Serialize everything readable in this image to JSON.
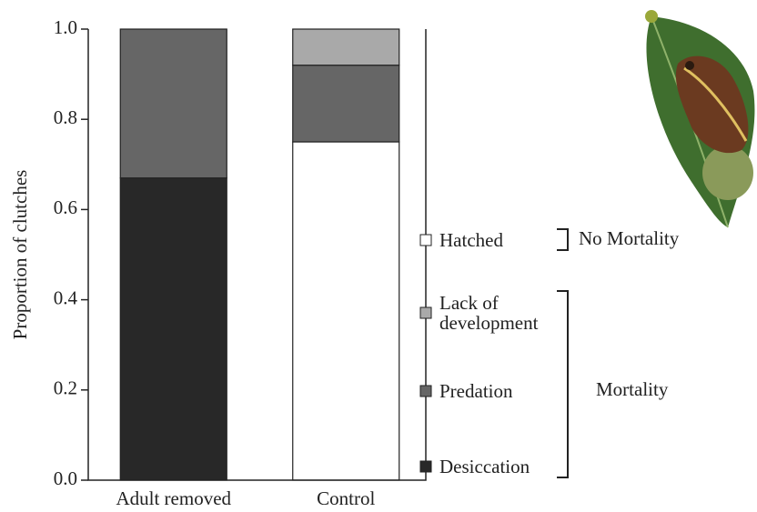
{
  "chart_data": {
    "type": "stacked-bar",
    "y_label": "Proportion of clutches",
    "categories": [
      "Adult removed",
      "Control"
    ],
    "series": [
      {
        "name": "Hatched",
        "color": "#ffffff",
        "values": [
          0,
          0.75
        ]
      },
      {
        "name": "Desiccation",
        "color": "#282828",
        "values": [
          0.67,
          0
        ]
      },
      {
        "name": "Predation",
        "color": "#666666",
        "values": [
          0.33,
          0.17
        ]
      },
      {
        "name": "Lack of development",
        "color": "#a9a9a9",
        "values": [
          0,
          0.08
        ]
      }
    ],
    "legend_groups": [
      "No Mortality",
      "Mortality"
    ],
    "ylim": [
      0,
      1
    ],
    "yticks": [
      {
        "value": 0,
        "label": "0.0"
      },
      0.2,
      0.4,
      0.6,
      0.8,
      {
        "value": 1,
        "label": "1.0"
      }
    ]
  }
}
